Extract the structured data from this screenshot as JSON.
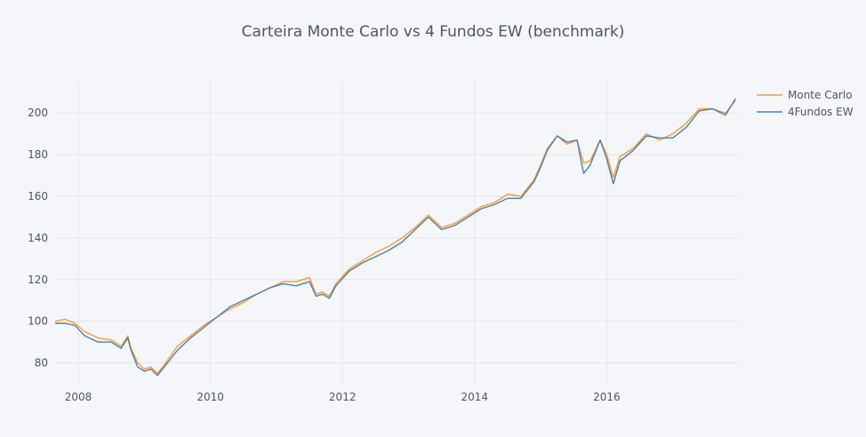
{
  "chart_data": {
    "type": "line",
    "title": "Carteira Monte Carlo vs 4 Fundos EW (benchmark)",
    "xlabel": "",
    "ylabel": "",
    "xlim": [
      2007.65,
      2018.0
    ],
    "ylim": [
      70,
      215
    ],
    "x_ticks": [
      2008,
      2010,
      2012,
      2014,
      2016
    ],
    "x_tick_labels": [
      "2008",
      "2010",
      "2012",
      "2014",
      "2016"
    ],
    "y_ticks": [
      80,
      100,
      120,
      140,
      160,
      180,
      200
    ],
    "y_tick_labels": [
      "80",
      "100",
      "120",
      "140",
      "160",
      "180",
      "200"
    ],
    "grid": true,
    "legend_position": "top-right",
    "colors": {
      "background": "#F5F6F9",
      "grid": "#E1E5ED",
      "text": "#4D5663"
    },
    "x": [
      2007.65,
      2007.8,
      2007.95,
      2008.1,
      2008.3,
      2008.5,
      2008.65,
      2008.75,
      2008.8,
      2008.9,
      2009.0,
      2009.1,
      2009.2,
      2009.3,
      2009.5,
      2009.7,
      2009.9,
      2010.1,
      2010.3,
      2010.5,
      2010.7,
      2010.9,
      2011.1,
      2011.3,
      2011.5,
      2011.6,
      2011.7,
      2011.8,
      2011.9,
      2012.1,
      2012.3,
      2012.5,
      2012.7,
      2012.9,
      2013.1,
      2013.3,
      2013.5,
      2013.7,
      2013.9,
      2014.1,
      2014.3,
      2014.5,
      2014.7,
      2014.9,
      2015.0,
      2015.1,
      2015.25,
      2015.4,
      2015.55,
      2015.65,
      2015.75,
      2015.9,
      2016.0,
      2016.1,
      2016.2,
      2016.4,
      2016.6,
      2016.8,
      2017.0,
      2017.2,
      2017.4,
      2017.6,
      2017.8,
      2017.95
    ],
    "series": [
      {
        "name": "Monte Carlo",
        "color": "#FF9933",
        "values": [
          100,
          101,
          99,
          95,
          92,
          91,
          88,
          93,
          87,
          80,
          77,
          78,
          75,
          79,
          88,
          93,
          98,
          102,
          106,
          109,
          113,
          116,
          119,
          119,
          121,
          113,
          114,
          112,
          118,
          125,
          129,
          133,
          136,
          140,
          145,
          151,
          145,
          147,
          151,
          155,
          157,
          161,
          160,
          168,
          175,
          183,
          189,
          185,
          187,
          176,
          177,
          187,
          180,
          169,
          179,
          183,
          190,
          187,
          190,
          195,
          202,
          202,
          200,
          206
        ]
      },
      {
        "name": "4Fundos EW",
        "color": "#4682B4",
        "values": [
          99,
          99,
          98,
          93,
          90,
          90,
          87,
          92,
          86,
          78,
          76,
          77,
          74,
          78,
          86,
          92,
          97,
          102,
          107,
          110,
          113,
          116,
          118,
          117,
          119,
          112,
          113,
          111,
          117,
          124,
          128,
          131,
          134,
          138,
          144,
          150,
          144,
          146,
          150,
          154,
          156,
          159,
          159,
          167,
          174,
          182,
          189,
          186,
          187,
          171,
          175,
          187,
          178,
          166,
          177,
          182,
          189,
          188,
          188,
          193,
          201,
          202,
          199,
          207
        ]
      }
    ]
  }
}
